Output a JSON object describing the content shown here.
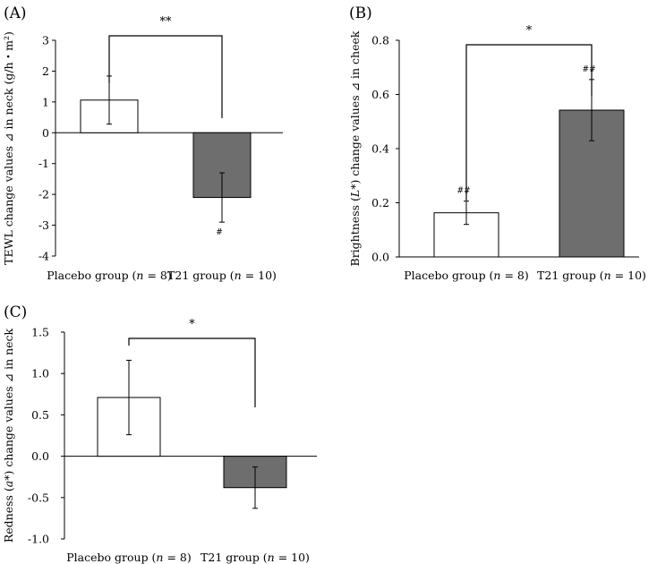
{
  "colors": {
    "placebo_fill": "#ffffff",
    "t21_fill": "#6e6e6e",
    "stroke": "#000000"
  },
  "chart_data": [
    {
      "type": "bar",
      "panel": "(A)",
      "ylabel": "TEWL change values ⊿ in neck (g/h・m²)",
      "ylim": [
        -4,
        3
      ],
      "yticks": [
        "3",
        "2",
        "1",
        "0",
        "-1",
        "-2",
        "-3",
        "-4"
      ],
      "ytick_values": [
        3,
        2,
        1,
        0,
        -1,
        -2,
        -3,
        -4
      ],
      "categories": [
        "Placebo group (n = 8)",
        "T21 group (n = 10)"
      ],
      "values": [
        1.06,
        -2.1
      ],
      "errors": [
        0.78,
        0.8
      ],
      "point_marks": [
        "",
        "#"
      ],
      "significance": "**"
    },
    {
      "type": "bar",
      "panel": "(B)",
      "ylabel": "Brightness (L*) change values ⊿ in cheek",
      "ylim": [
        0,
        0.8
      ],
      "yticks": [
        "0.8",
        "0.6",
        "0.4",
        "0.2",
        "0.0"
      ],
      "ytick_values": [
        0.8,
        0.6,
        0.4,
        0.2,
        0.0
      ],
      "categories": [
        "Placebo group (n = 8)",
        "T21 group (n = 10)"
      ],
      "values": [
        0.163,
        0.542
      ],
      "errors": [
        0.043,
        0.113
      ],
      "point_marks": [
        "##",
        "##"
      ],
      "significance": "*"
    },
    {
      "type": "bar",
      "panel": "(C)",
      "ylabel": "Redness (a*) change values ⊿ in neck",
      "ylim": [
        -1.0,
        1.5
      ],
      "yticks": [
        "1.5",
        "1.0",
        "0.5",
        "0.0",
        "-0.5",
        "-1.0"
      ],
      "ytick_values": [
        1.5,
        1.0,
        0.5,
        0.0,
        -0.5,
        -1.0
      ],
      "categories": [
        "Placebo group (n = 8)",
        "T21 group (n = 10)"
      ],
      "values": [
        0.71,
        -0.38
      ],
      "errors": [
        0.45,
        0.25
      ],
      "point_marks": [
        "",
        ""
      ],
      "significance": "*"
    }
  ]
}
